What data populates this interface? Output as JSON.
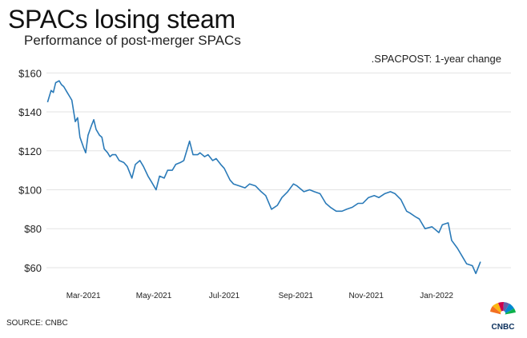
{
  "header": {
    "title": "SPACs losing steam",
    "subtitle": "Performance of post-merger SPACs"
  },
  "footer": {
    "source": "SOURCE: CNBC",
    "logo_text": "CNBC"
  },
  "colors": {
    "line": "#2a7ab8",
    "grid": "#e3e3e3",
    "text": "#222222"
  },
  "chart_data": {
    "type": "line",
    "title": "SPACs losing steam",
    "subtitle": "Performance of post-merger SPACs",
    "annotation": ".SPACPOST: 1-year change",
    "ylim": [
      53,
      163
    ],
    "xlim": [
      "2021-01-28",
      "2022-02-15"
    ],
    "ytick_values": [
      60,
      80,
      100,
      120,
      140,
      160
    ],
    "ytick_labels": [
      "$60",
      "$80",
      "$100",
      "$120",
      "$140",
      "$160"
    ],
    "xticks": [
      {
        "date": "2021-03-01",
        "label": "Mar-2021"
      },
      {
        "date": "2021-05-01",
        "label": "May-2021"
      },
      {
        "date": "2021-07-01",
        "label": "Jul-2021"
      },
      {
        "date": "2021-09-01",
        "label": "Sep-2021"
      },
      {
        "date": "2021-11-01",
        "label": "Nov-2021"
      },
      {
        "date": "2022-01-01",
        "label": "Jan-2022"
      }
    ],
    "grid": "horizontal",
    "series": [
      {
        "x": [
          "2021-01-29",
          "2021-02-01",
          "2021-02-03",
          "2021-02-05",
          "2021-02-08",
          "2021-02-10",
          "2021-02-12",
          "2021-02-15",
          "2021-02-17",
          "2021-02-19",
          "2021-02-22",
          "2021-02-24",
          "2021-02-26",
          "2021-03-01",
          "2021-03-03",
          "2021-03-05",
          "2021-03-08",
          "2021-03-10",
          "2021-03-12",
          "2021-03-15",
          "2021-03-17",
          "2021-03-19",
          "2021-03-22",
          "2021-03-24",
          "2021-03-26",
          "2021-03-29",
          "2021-04-01",
          "2021-04-05",
          "2021-04-08",
          "2021-04-12",
          "2021-04-15",
          "2021-04-19",
          "2021-04-22",
          "2021-04-26",
          "2021-04-29",
          "2021-05-03",
          "2021-05-06",
          "2021-05-10",
          "2021-05-13",
          "2021-05-17",
          "2021-05-20",
          "2021-05-24",
          "2021-05-27",
          "2021-06-01",
          "2021-06-04",
          "2021-06-08",
          "2021-06-10",
          "2021-06-14",
          "2021-06-17",
          "2021-06-21",
          "2021-06-24",
          "2021-06-28",
          "2021-07-01",
          "2021-07-06",
          "2021-07-09",
          "2021-07-14",
          "2021-07-19",
          "2021-07-23",
          "2021-07-28",
          "2021-08-02",
          "2021-08-06",
          "2021-08-11",
          "2021-08-16",
          "2021-08-20",
          "2021-08-25",
          "2021-08-30",
          "2021-09-02",
          "2021-09-08",
          "2021-09-13",
          "2021-09-17",
          "2021-09-22",
          "2021-09-27",
          "2021-10-01",
          "2021-10-06",
          "2021-10-11",
          "2021-10-15",
          "2021-10-20",
          "2021-10-25",
          "2021-10-29",
          "2021-11-03",
          "2021-11-08",
          "2021-11-12",
          "2021-11-17",
          "2021-11-22",
          "2021-11-26",
          "2021-12-01",
          "2021-12-06",
          "2021-12-09",
          "2021-12-14",
          "2021-12-17",
          "2021-12-22",
          "2021-12-28",
          "2022-01-03",
          "2022-01-06",
          "2022-01-11",
          "2022-01-14",
          "2022-01-19",
          "2022-01-24",
          "2022-01-27",
          "2022-02-01",
          "2022-02-04",
          "2022-02-08"
        ],
        "y": [
          145,
          151,
          150,
          155,
          156,
          154,
          153,
          150,
          148,
          146,
          135,
          137,
          127,
          122,
          119,
          128,
          133,
          136,
          131,
          128,
          127,
          121,
          119,
          117,
          118,
          118,
          115,
          114,
          112,
          106,
          113,
          115,
          112,
          107,
          104,
          100,
          107,
          106,
          110,
          110,
          113,
          114,
          115,
          125,
          118,
          118,
          119,
          117,
          118,
          115,
          116,
          113,
          111,
          105,
          103,
          102,
          101,
          103,
          102,
          99,
          97,
          90,
          92,
          96,
          99,
          103,
          102,
          99,
          100,
          99,
          98,
          93,
          91,
          89,
          89,
          90,
          91,
          93,
          93,
          96,
          97,
          96,
          98,
          99,
          98,
          95,
          89,
          88,
          86,
          85,
          80,
          81,
          78,
          82,
          83,
          74,
          70,
          65,
          62,
          61,
          57,
          63
        ]
      }
    ]
  }
}
